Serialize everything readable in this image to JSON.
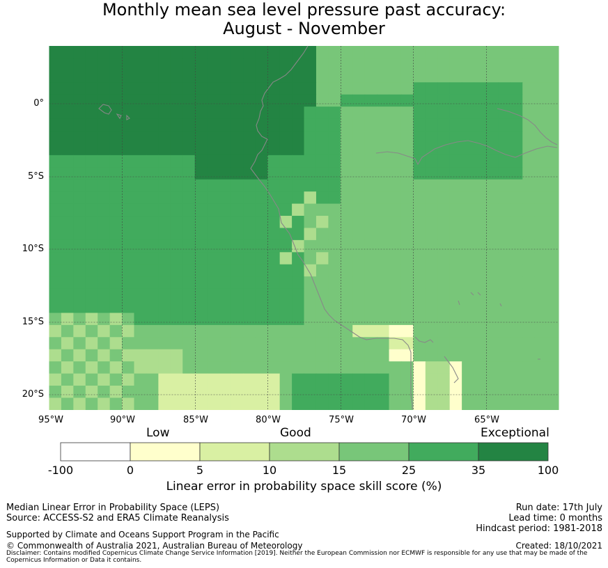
{
  "title": {
    "line1": "Monthly mean sea level pressure past accuracy:",
    "line2": "August - November"
  },
  "map": {
    "lat_labels": [
      "0°",
      "5°S",
      "10°S",
      "15°S",
      "20°S"
    ],
    "lon_labels": [
      "95°W",
      "90°W",
      "85°W",
      "80°W",
      "75°W",
      "70°W",
      "65°W"
    ],
    "extent": {
      "lon_min": -95,
      "lon_max": -60,
      "lat_min": -21,
      "lat_max": 4
    }
  },
  "colorbar": {
    "categories": [
      "Low",
      "Good",
      "Exceptional"
    ],
    "ticks": [
      "-100",
      "0",
      "5",
      "10",
      "15",
      "25",
      "35",
      "100"
    ],
    "colors": [
      "#ffffff",
      "#ffffcc",
      "#d9f0a3",
      "#addd8e",
      "#78c679",
      "#41ab5d",
      "#238443"
    ],
    "label": "Linear error in probability space skill score (%)"
  },
  "footer": {
    "left1": "Median Linear Error in Probability Space (LEPS)",
    "left2": "Source: ACCESS-S2 and ERA5 Climate Reanalysis",
    "left3": "Supported by Climate and Oceans Support Program in the Pacific",
    "left4": "© Commonwealth of Australia 2021, Australian Bureau of Meteorology",
    "right1": "Run date: 17th July",
    "right2": "Lead time: 0 months",
    "right3": "Hindcast period: 1981-2018",
    "right4": "Created: 18/10/2021",
    "disclaimer1": "Disclaimer: Contains modified Copernicus Climate Change Service Information [2019]. Neither the European Commission nor ECMWF is responsible for any use that may be made of the",
    "disclaimer2": "Copernicus Information or Data it contains."
  }
}
